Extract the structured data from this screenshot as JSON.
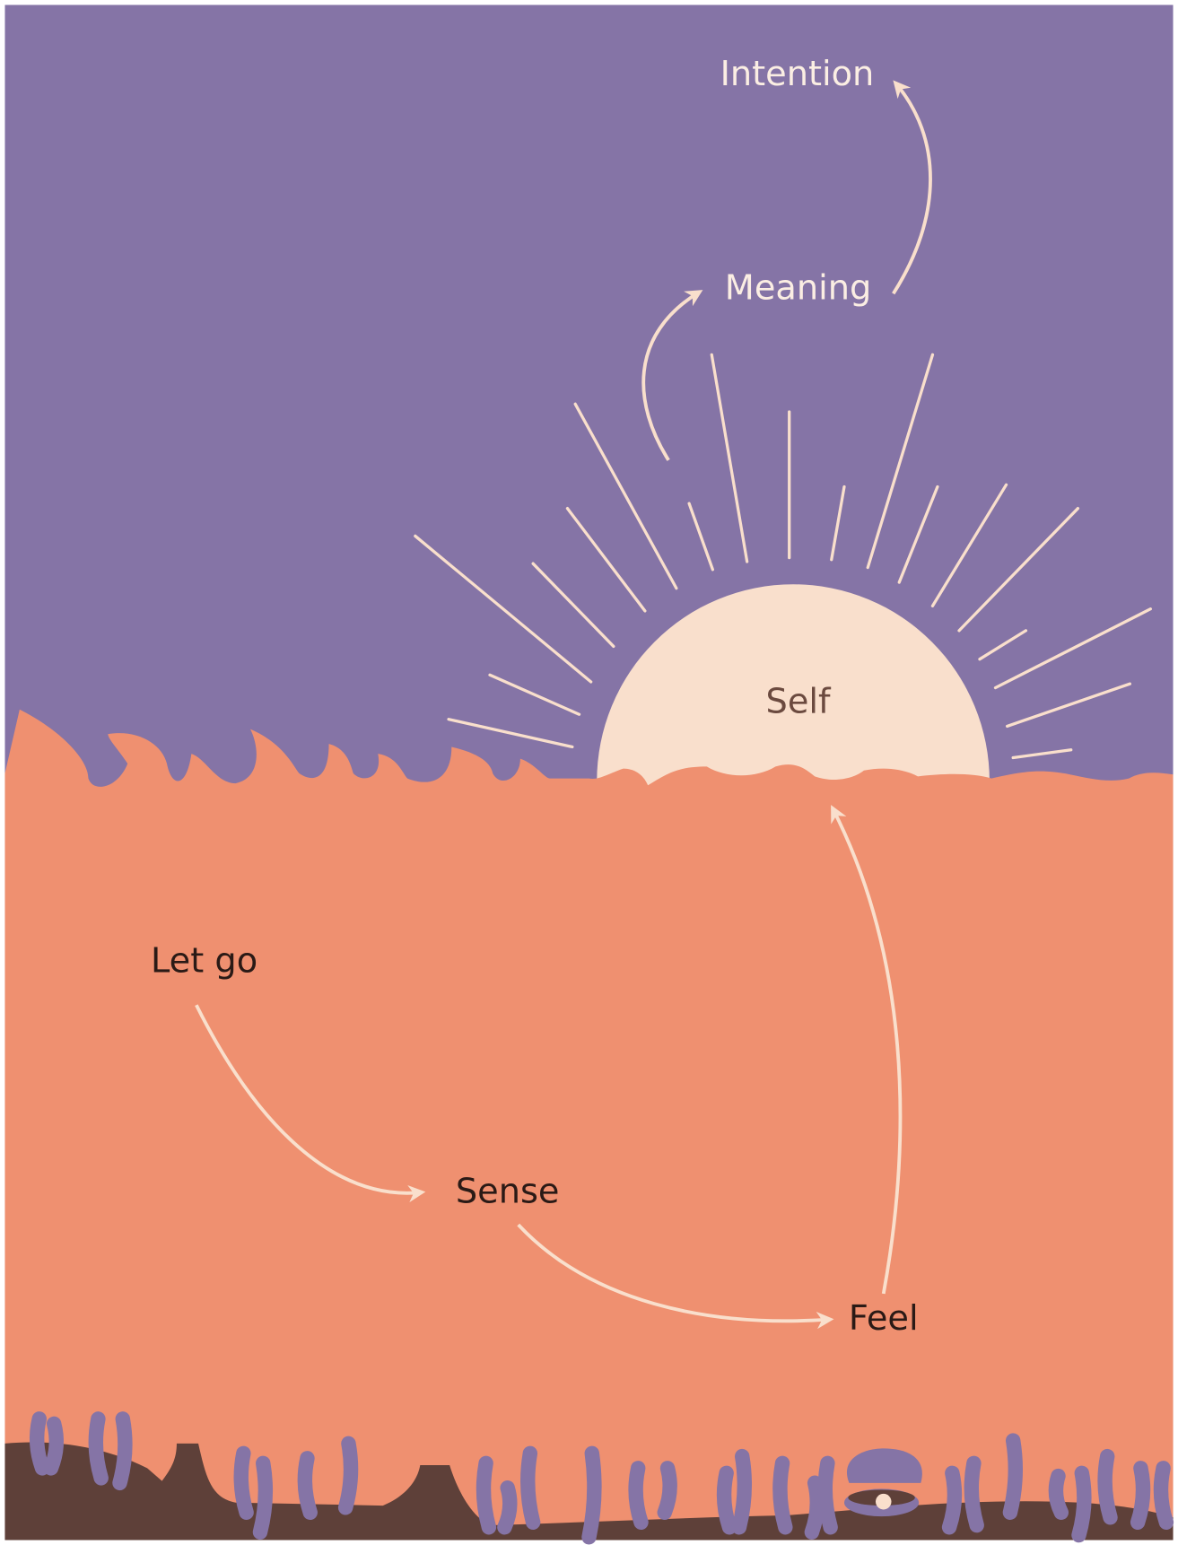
{
  "nodes": [
    {
      "label": "Intention"
    },
    {
      "label": "Meaning"
    },
    {
      "label": "Self"
    },
    {
      "label": "Let go"
    },
    {
      "label": "Sense"
    },
    {
      "label": "Feel"
    }
  ]
}
